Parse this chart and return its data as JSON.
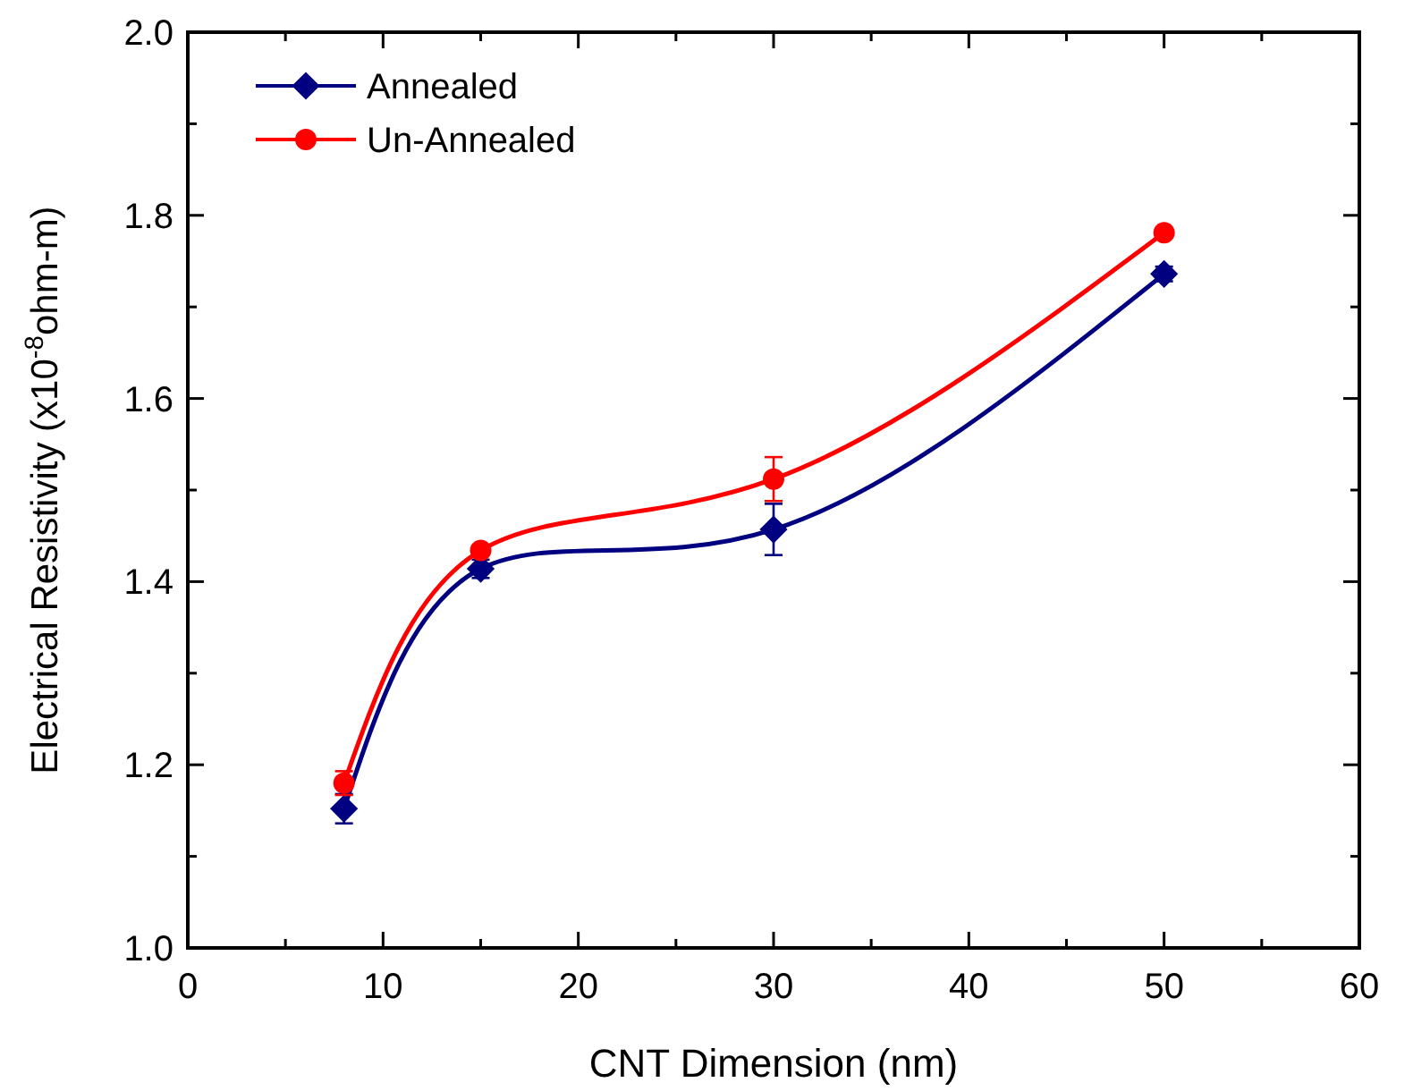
{
  "chart_data": {
    "type": "line",
    "xlabel": "CNT Dimension (nm)",
    "ylabel": "Electrical Resistivity (x10$^{-8}$ohm-m)",
    "x": [
      8,
      15,
      30,
      50
    ],
    "series": [
      {
        "name": "Annealed",
        "color": "#000080",
        "marker": "diamond",
        "values": [
          1.152,
          1.414,
          1.457,
          1.736
        ],
        "errors": [
          0.016,
          0.01,
          0.028,
          0.008
        ]
      },
      {
        "name": "Un-Annealed",
        "color": "#ff0000",
        "marker": "circle",
        "values": [
          1.18,
          1.434,
          1.512,
          1.781
        ],
        "errors": [
          0.013,
          0.005,
          0.024,
          null
        ]
      }
    ],
    "xlim": [
      0,
      60
    ],
    "xticks": [
      0,
      {
        "value": 5,
        "label": null
      },
      10,
      {
        "value": 15,
        "label": null
      },
      20,
      {
        "value": 25,
        "label": null
      },
      30,
      {
        "value": 35,
        "label": null
      },
      40,
      {
        "value": 45,
        "label": null
      },
      50,
      {
        "value": 55,
        "label": null
      },
      60
    ],
    "ylim": [
      1.0,
      2.0
    ],
    "yticks": [
      "1.0",
      {
        "value": 1.1,
        "label": null
      },
      1.2,
      {
        "value": 1.3,
        "label": null
      },
      1.4,
      {
        "value": 1.5,
        "label": null
      },
      1.6,
      {
        "value": 1.7,
        "label": null
      },
      1.8,
      {
        "value": 1.9,
        "label": null
      },
      "2.0"
    ],
    "legend": "top left",
    "grid": false
  }
}
